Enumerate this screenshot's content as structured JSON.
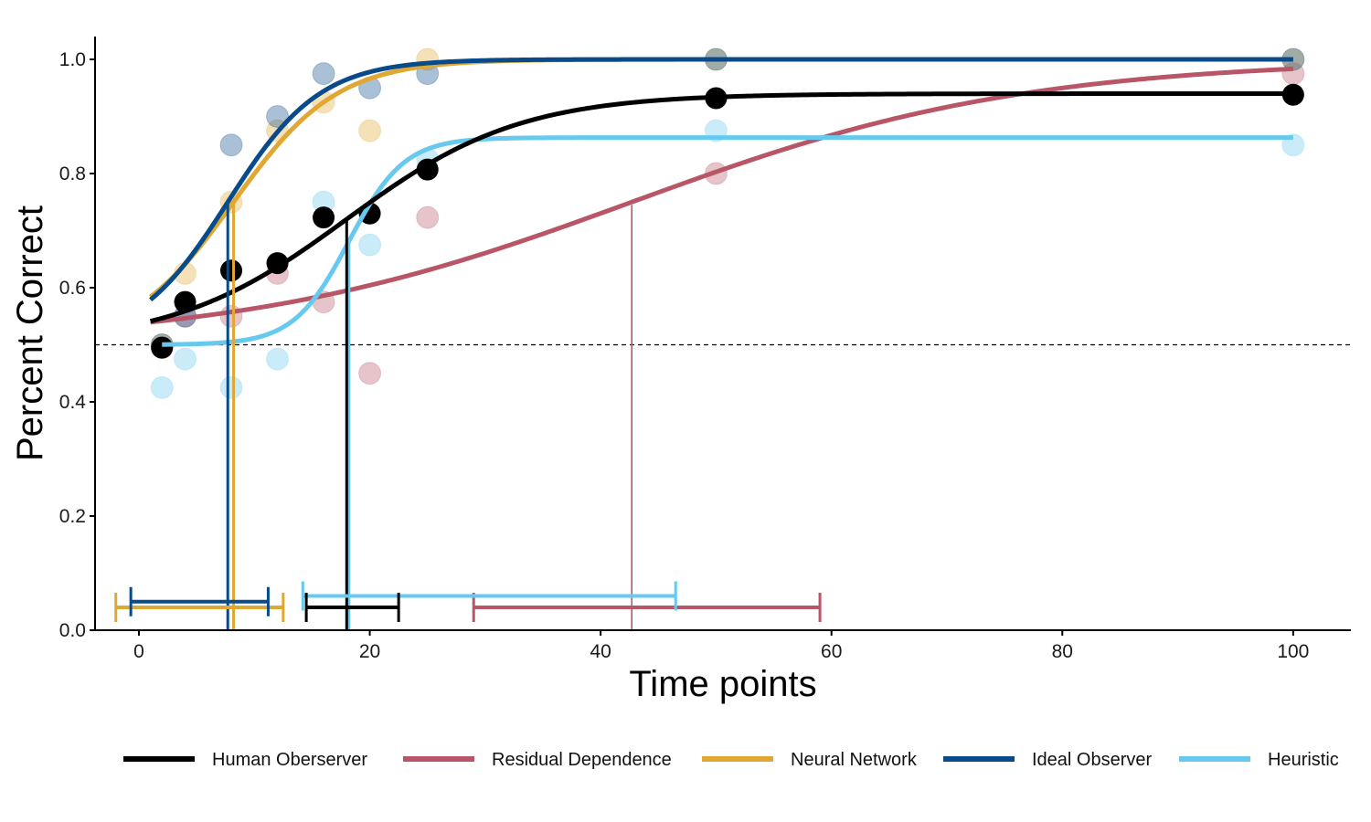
{
  "chart_data": {
    "type": "line",
    "xlabel": "Time points",
    "ylabel": "Percent Correct",
    "xlim": [
      -3.8,
      105
    ],
    "ylim": [
      0,
      1.04
    ],
    "x_ticks": [
      0,
      20,
      40,
      60,
      80,
      100
    ],
    "y_ticks": [
      0.0,
      0.2,
      0.4,
      0.6,
      0.8,
      1.0
    ],
    "y_tick_labels": [
      "0.0",
      "0.2",
      "0.4",
      "0.6",
      "0.8",
      "1.0"
    ],
    "chance_level": 0.5,
    "legend_position": "bottom",
    "series": [
      {
        "name": "Human Oberserver",
        "color": "#000000",
        "point_opacity": 1.0,
        "points": [
          [
            2,
            0.495
          ],
          [
            4,
            0.575
          ],
          [
            8,
            0.63
          ],
          [
            12,
            0.643
          ],
          [
            16,
            0.723
          ],
          [
            20,
            0.73
          ],
          [
            25,
            0.807
          ],
          [
            50,
            0.932
          ],
          [
            100,
            0.938
          ]
        ],
        "curve": {
          "lower": 0.5,
          "upper": 0.94,
          "midpoint": 18,
          "width": 7.5,
          "x_start": 1,
          "x_end": 100
        },
        "threshold_line": {
          "x": 18,
          "y": 0.72
        },
        "interval": {
          "low": 14.5,
          "high": 22.5,
          "y": 0.04
        }
      },
      {
        "name": "Residual Dependence",
        "color": "#b85668",
        "point_opacity": 0.35,
        "points": [
          [
            2,
            0.495
          ],
          [
            4,
            0.55
          ],
          [
            8,
            0.55
          ],
          [
            12,
            0.625
          ],
          [
            16,
            0.575
          ],
          [
            20,
            0.45
          ],
          [
            25,
            0.723
          ],
          [
            50,
            0.8
          ],
          [
            100,
            0.975
          ]
        ],
        "curve": {
          "lower": 0.5,
          "upper": 1.0,
          "midpoint": 42.7,
          "width": 17,
          "x_start": 1,
          "x_end": 100
        },
        "threshold_line": {
          "x": 42.7,
          "y": 0.745
        },
        "interval": {
          "low": 29,
          "high": 59,
          "y": 0.04
        }
      },
      {
        "name": "Neural Network",
        "color": "#e0a832",
        "point_opacity": 0.35,
        "points": [
          [
            2,
            0.5
          ],
          [
            4,
            0.625
          ],
          [
            8,
            0.75
          ],
          [
            12,
            0.875
          ],
          [
            16,
            0.925
          ],
          [
            20,
            0.875
          ],
          [
            25,
            1.0
          ],
          [
            50,
            1.0
          ],
          [
            100,
            1.0
          ]
        ],
        "curve": {
          "lower": 0.5,
          "upper": 1.0,
          "midpoint": 8.2,
          "width": 4.5,
          "x_start": 1,
          "x_end": 100
        },
        "threshold_line": {
          "x": 8.2,
          "y": 0.75
        },
        "interval": {
          "low": -2,
          "high": 12.5,
          "y": 0.04
        }
      },
      {
        "name": "Ideal Observer",
        "color": "#084a8a",
        "point_opacity": 0.35,
        "points": [
          [
            2,
            0.5
          ],
          [
            4,
            0.55
          ],
          [
            8,
            0.85
          ],
          [
            12,
            0.9
          ],
          [
            16,
            0.975
          ],
          [
            20,
            0.95
          ],
          [
            25,
            0.975
          ],
          [
            50,
            1.0
          ],
          [
            100,
            1.0
          ]
        ],
        "curve": {
          "lower": 0.5,
          "upper": 1.0,
          "midpoint": 7.7,
          "width": 4.0,
          "x_start": 1,
          "x_end": 100
        },
        "threshold_line": {
          "x": 7.7,
          "y": 0.75
        },
        "interval": {
          "low": -0.7,
          "high": 11.2,
          "y": 0.05
        }
      },
      {
        "name": "Heuristic",
        "color": "#66c9ed",
        "point_opacity": 0.35,
        "points": [
          [
            2,
            0.425
          ],
          [
            4,
            0.475
          ],
          [
            8,
            0.425
          ],
          [
            12,
            0.475
          ],
          [
            16,
            0.75
          ],
          [
            20,
            0.675
          ],
          [
            25,
            0.825
          ],
          [
            50,
            0.875
          ],
          [
            100,
            0.85
          ]
        ],
        "curve": {
          "lower": 0.5,
          "upper": 0.863,
          "midpoint": 18.2,
          "width": 2.4,
          "x_start": 2,
          "x_end": 100
        },
        "threshold_line": {
          "x": 18.2,
          "y": 0.68
        },
        "interval": {
          "low": 14.2,
          "high": 46.5,
          "y": 0.06
        }
      }
    ]
  }
}
